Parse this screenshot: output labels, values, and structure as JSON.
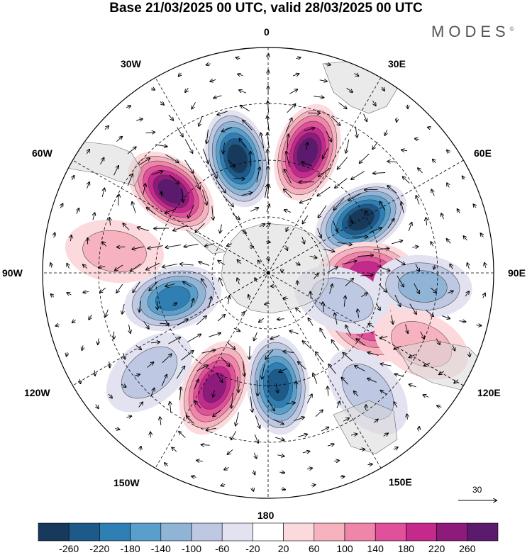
{
  "title": "Base 21/03/2025 00 UTC, valid 28/03/2025 00 UTC",
  "logo": "MODES",
  "longitude_labels": {
    "lon_0": "0",
    "lon_30e": "30E",
    "lon_60e": "60E",
    "lon_90e": "90E",
    "lon_120e": "120E",
    "lon_150e": "150E",
    "lon_180": "180",
    "lon_150w": "150W",
    "lon_120w": "120W",
    "lon_90w": "90W",
    "lon_60w": "60W",
    "lon_30w": "30W"
  },
  "vector_scale": "30",
  "colorbar": {
    "ticks": [
      "-260",
      "-220",
      "-180",
      "-140",
      "-100",
      "-60",
      "-20",
      "20",
      "60",
      "100",
      "140",
      "180",
      "220",
      "260"
    ],
    "colors": [
      "#173a5c",
      "#1d5a8a",
      "#2f7fb4",
      "#5a9fcb",
      "#8fb4d6",
      "#bec8e2",
      "#e2e2f0",
      "#ffffff",
      "#fbd9dd",
      "#f6b3bf",
      "#ef85a9",
      "#e0519a",
      "#c42a8c",
      "#8e1a7c",
      "#5c1a6e"
    ]
  },
  "anomalies": [
    {
      "name": "pos-60w",
      "lon": -50,
      "lat": -45,
      "value": 260
    },
    {
      "name": "neg-20w",
      "lon": -15,
      "lat": -48,
      "value": -260
    },
    {
      "name": "pos-15e",
      "lon": 18,
      "lat": -45,
      "value": 260
    },
    {
      "name": "neg-55e",
      "lon": 60,
      "lat": -52,
      "value": -260
    },
    {
      "name": "pos-90e",
      "lon": 90,
      "lat": -55,
      "value": 180
    },
    {
      "name": "neg-90e-outer",
      "lon": 95,
      "lat": -35,
      "value": -100
    },
    {
      "name": "pos-120e",
      "lon": 118,
      "lat": -50,
      "value": 140
    },
    {
      "name": "neg-105e",
      "lon": 110,
      "lat": -62,
      "value": -80
    },
    {
      "name": "neg-165w",
      "lon": 175,
      "lat": -50,
      "value": -220
    },
    {
      "name": "pos-150w",
      "lon": -155,
      "lat": -45,
      "value": 220
    },
    {
      "name": "neg-100w",
      "lon": -105,
      "lat": -55,
      "value": -180
    },
    {
      "name": "pos-85w",
      "lon": -82,
      "lat": -35,
      "value": 60
    },
    {
      "name": "neg-130w",
      "lon": -130,
      "lat": -35,
      "value": -60
    },
    {
      "name": "neg-140e",
      "lon": 140,
      "lat": -35,
      "value": -60
    },
    {
      "name": "pos-120e-outer",
      "lon": 115,
      "lat": -30,
      "value": 60
    }
  ]
}
